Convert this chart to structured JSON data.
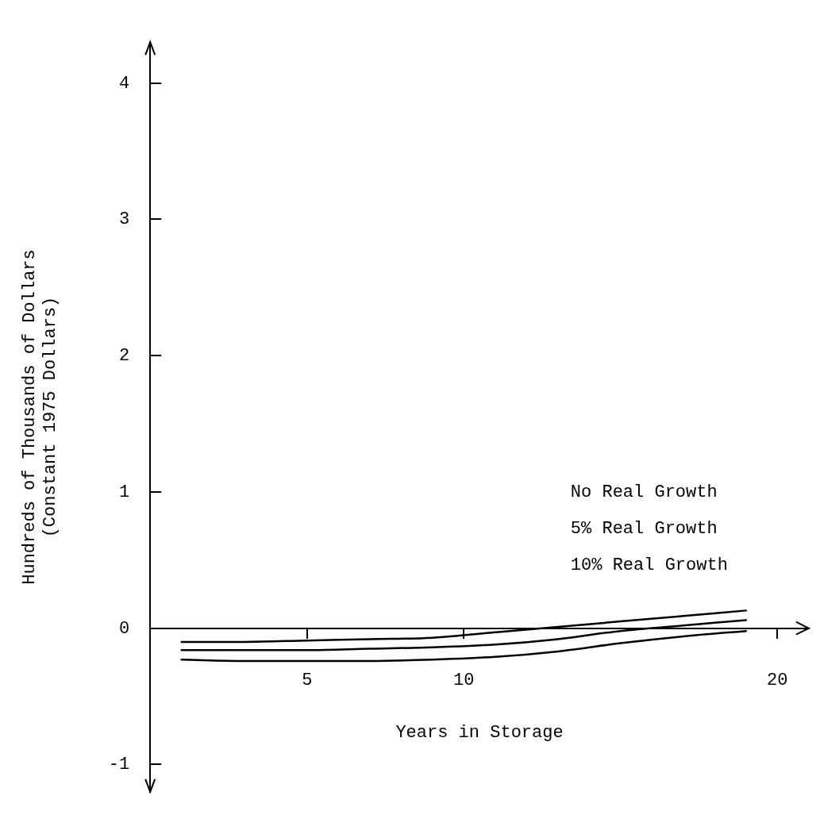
{
  "chart_data": {
    "type": "line",
    "xlabel": "Years in Storage",
    "ylabel": "Hundreds of Thousands of Dollars\n(Constant 1975 Dollars)",
    "x": [
      1,
      3,
      5,
      7,
      9,
      11,
      13,
      15,
      17,
      19
    ],
    "series": [
      {
        "color": "#000000",
        "values": [
          -0.1,
          -0.1,
          -0.09,
          -0.08,
          -0.07,
          -0.03,
          0.01,
          0.05,
          0.09,
          0.13
        ]
      },
      {
        "color": "#000000",
        "values": [
          -0.16,
          -0.16,
          -0.16,
          -0.15,
          -0.14,
          -0.12,
          -0.08,
          -0.02,
          0.02,
          0.06
        ]
      },
      {
        "color": "#000000",
        "values": [
          -0.23,
          -0.24,
          -0.24,
          -0.24,
          -0.23,
          -0.21,
          -0.17,
          -0.11,
          -0.06,
          -0.02
        ]
      }
    ],
    "xlim": [
      0,
      21
    ],
    "xticks": [
      5,
      10,
      20
    ],
    "ylim": [
      -1.2,
      4.3
    ],
    "yticks": [
      -1,
      0,
      1,
      2,
      3,
      4
    ],
    "grid": false,
    "legend": false,
    "marker": "none",
    "line_style": "solid",
    "annotations": [
      "No Real Growth",
      "5% Real Growth",
      "10% Real Growth"
    ]
  }
}
